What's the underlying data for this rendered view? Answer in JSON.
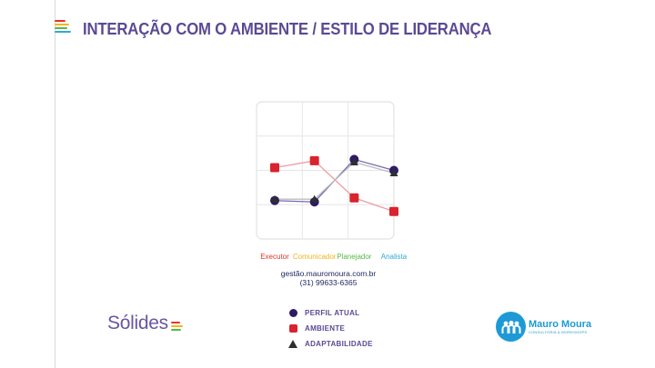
{
  "page": {
    "title": "INTERAÇÃO COM O AMBIENTE / ESTILO DE LIDERANÇA",
    "contact_site": "gestão.mauromoura.com.br",
    "contact_phone": "(31) 99633-6365"
  },
  "logos": {
    "solides": "Sólides",
    "mauro_moura_name": "Mauro Moura",
    "mauro_moura_sub": "CONSULTORIA & WORKSHOPS"
  },
  "colors": {
    "title": "#5b4a93",
    "perfil_atual": "#2e1b66",
    "ambiente": "#d9232e",
    "adaptabilidade": "#2f2f2f",
    "executor": "#e0342c",
    "comunicador": "#f2b51e",
    "planejador": "#57b947",
    "analista": "#31a9d6",
    "accent_blue": "#1d9ad6"
  },
  "chart_data": {
    "type": "line",
    "categories": [
      "Executor",
      "Comunicador",
      "Planejador",
      "Analista"
    ],
    "category_colors": [
      "#e0342c",
      "#f2b51e",
      "#57b947",
      "#31a9d6"
    ],
    "ylim": [
      0,
      100
    ],
    "grid": true,
    "legend_position": "bottom",
    "series": [
      {
        "name": "PERFIL ATUAL",
        "marker": "circle",
        "color": "#2e1b66",
        "values": [
          28,
          27,
          58,
          50
        ]
      },
      {
        "name": "AMBIENTE",
        "marker": "square",
        "color": "#d9232e",
        "values": [
          52,
          57,
          30,
          20
        ]
      },
      {
        "name": "ADAPTABILIDADE",
        "marker": "triangle",
        "color": "#2f2f2f",
        "values": [
          29,
          29,
          56,
          48
        ]
      }
    ]
  }
}
